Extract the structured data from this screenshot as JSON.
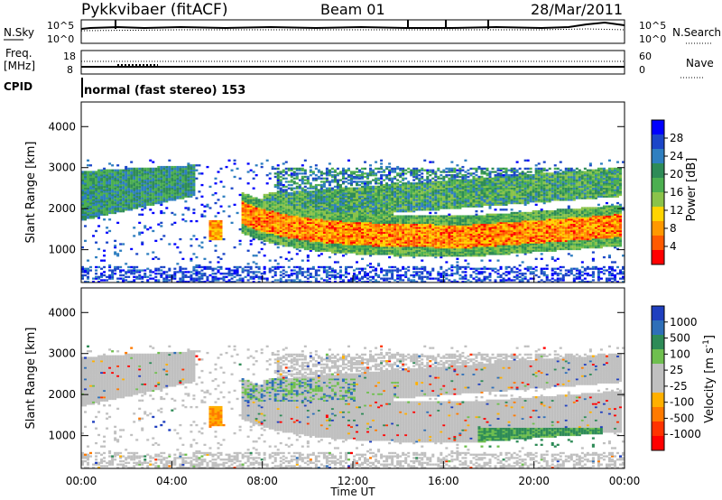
{
  "header": {
    "radar": "Pykkvibaer (fitACF)",
    "beam": "Beam 01",
    "date": "28/Mar/2011"
  },
  "noise_panel": {
    "left_label": "N.Sky",
    "right_label": "N.Search",
    "ticks": [
      "10^5",
      "10^0"
    ]
  },
  "freq_panel": {
    "left_label": "Freq.",
    "left_unit": "[MHz]",
    "left_ticks": [
      "18",
      "8"
    ],
    "right_label": "Nave",
    "right_ticks": [
      "60",
      "0"
    ]
  },
  "cpid": {
    "label": "CPID",
    "value": "normal (fast stereo) 153"
  },
  "x_axis": {
    "label": "Time UT",
    "ticks": [
      "00:00",
      "04:00",
      "08:00",
      "12:00",
      "16:00",
      "20:00",
      "00:00"
    ]
  },
  "chart_data": [
    {
      "type": "heatmap",
      "name": "power",
      "ylabel": "Slant Range [km]",
      "yticks": [
        1000,
        2000,
        3000,
        4000
      ],
      "ylim": [
        200,
        4600
      ],
      "xlim_hours": [
        0,
        24
      ],
      "colorbar": {
        "label": "Power [dB]",
        "ticks": [
          "28",
          "24",
          "20",
          "16",
          "12",
          "8",
          "4"
        ],
        "scale": [
          "#0000ff",
          "#1c46c8",
          "#2f7fc0",
          "#2e8b57",
          "#4caf50",
          "#8bc34a",
          "#ffd400",
          "#ff9800",
          "#ff5a00",
          "#ff0000"
        ]
      },
      "regions": [
        {
          "t_start": 0.0,
          "t_end": 5.0,
          "r_min": 1700,
          "r_max": 3100,
          "level": "weak-moderate"
        },
        {
          "t_start": 7.0,
          "t_end": 23.5,
          "r_min": 800,
          "r_max": 2300,
          "level": "strong"
        },
        {
          "t_start": 8.0,
          "t_end": 23.0,
          "r_min": 1800,
          "r_max": 3000,
          "level": "moderate"
        }
      ]
    },
    {
      "type": "heatmap",
      "name": "velocity",
      "ylabel": "Slant Range [km]",
      "yticks": [
        1000,
        2000,
        3000,
        4000
      ],
      "ylim": [
        200,
        4600
      ],
      "xlim_hours": [
        0,
        24
      ],
      "colorbar": {
        "label": "Velocity [m s^-1]",
        "ticks": [
          "1000",
          "500",
          "100",
          "25",
          "-25",
          "-100",
          "-500",
          "-1000"
        ],
        "scale": [
          "#1f3fbf",
          "#2e6fb8",
          "#2e8b57",
          "#6fbf4f",
          "#c0c0c0",
          "#c0c0c0",
          "#ffb000",
          "#ff7a00",
          "#ff3300",
          "#ff0000"
        ]
      }
    }
  ]
}
